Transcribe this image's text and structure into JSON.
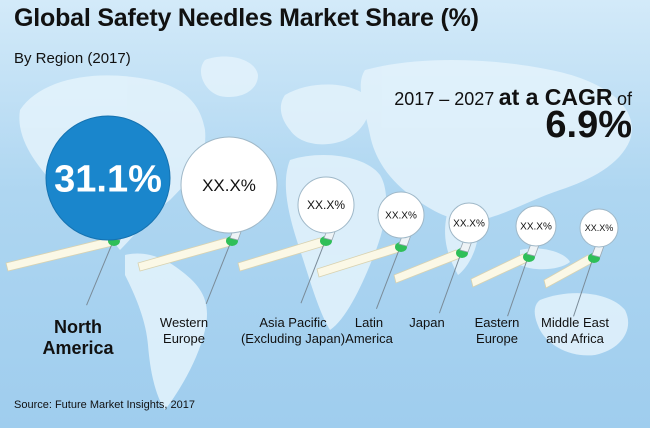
{
  "chart_data": {
    "type": "bubble",
    "title": "Global Safety Needles Market Share (%)",
    "subtitle": "By Region (2017)",
    "categories": [
      "North America",
      "Western Europe",
      "Asia Pacific (Excluding Japan)",
      "Latin America",
      "Japan",
      "Eastern Europe",
      "Middle East and Africa"
    ],
    "category_lines": [
      [
        "North",
        "America"
      ],
      [
        "Western",
        "Europe"
      ],
      [
        "Asia Pacific",
        "(Excluding Japan)"
      ],
      [
        "Latin",
        "America"
      ],
      [
        "Japan"
      ],
      [
        "Eastern",
        "Europe"
      ],
      [
        "Middle East",
        "and Africa"
      ]
    ],
    "value_labels": [
      "31.1%",
      "XX.X%",
      "XX.X%",
      "XX.X%",
      "XX.X%",
      "XX.X%",
      "XX.X%"
    ],
    "highlight_index": 0,
    "cagr": {
      "period": "2017 – 2027",
      "phrase": "at a CAGR",
      "of": "of",
      "value": "6.9%"
    },
    "source": "Source: Future Market Insights, 2017"
  },
  "colors": {
    "background": "#a8d4f0",
    "world_map": "#e4f3fc",
    "highlight_bubble": "#1a86cc",
    "bubble": "#ffffff",
    "needle_body": "#fbf8e6",
    "needle_green": "#2fbf58"
  }
}
